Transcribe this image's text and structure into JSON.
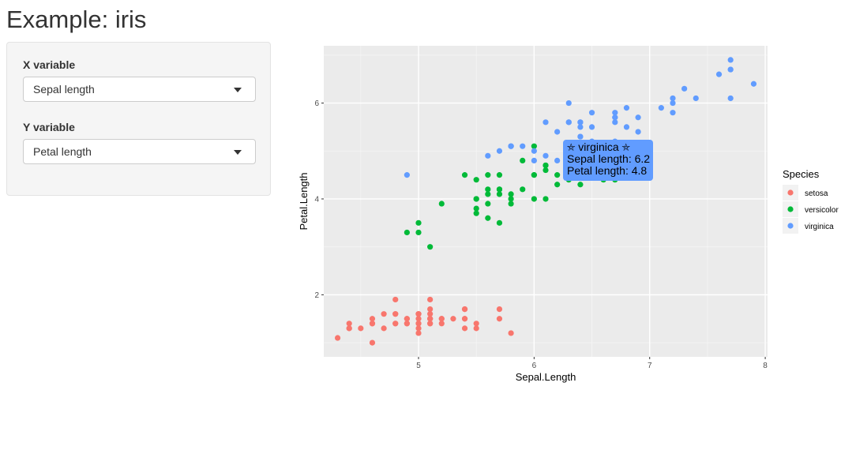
{
  "page": {
    "title": "Example: iris"
  },
  "controls": {
    "x": {
      "label": "X variable",
      "selected": "Sepal length"
    },
    "y": {
      "label": "Y variable",
      "selected": "Petal length"
    }
  },
  "tooltip": {
    "species": "virginica",
    "line1": "Sepal length: 6.2",
    "line2": "Petal length: 4.8"
  },
  "chart_data": {
    "type": "scatter",
    "xlabel": "Sepal.Length",
    "ylabel": "Petal.Length",
    "xlim": [
      4.18,
      8.02
    ],
    "ylim": [
      0.705,
      7.195
    ],
    "xticks": [
      5,
      6,
      7,
      8
    ],
    "yticks": [
      2,
      4,
      6
    ],
    "panel_background": "#ebebeb",
    "grid": true,
    "legend": {
      "title": "Species",
      "placement": "right"
    },
    "series": [
      {
        "name": "setosa",
        "color": "#f8766d",
        "points": [
          [
            5.1,
            1.4
          ],
          [
            4.9,
            1.4
          ],
          [
            4.7,
            1.3
          ],
          [
            4.6,
            1.5
          ],
          [
            5.0,
            1.4
          ],
          [
            5.4,
            1.7
          ],
          [
            4.6,
            1.4
          ],
          [
            5.0,
            1.5
          ],
          [
            4.4,
            1.4
          ],
          [
            4.9,
            1.5
          ],
          [
            5.4,
            1.5
          ],
          [
            4.8,
            1.6
          ],
          [
            4.8,
            1.4
          ],
          [
            4.3,
            1.1
          ],
          [
            5.8,
            1.2
          ],
          [
            5.7,
            1.5
          ],
          [
            5.4,
            1.3
          ],
          [
            5.1,
            1.4
          ],
          [
            5.7,
            1.7
          ],
          [
            5.1,
            1.5
          ],
          [
            5.4,
            1.7
          ],
          [
            5.1,
            1.5
          ],
          [
            4.6,
            1.0
          ],
          [
            5.1,
            1.7
          ],
          [
            4.8,
            1.9
          ],
          [
            5.0,
            1.6
          ],
          [
            5.0,
            1.6
          ],
          [
            5.2,
            1.5
          ],
          [
            5.2,
            1.4
          ],
          [
            4.7,
            1.6
          ],
          [
            4.8,
            1.6
          ],
          [
            5.4,
            1.5
          ],
          [
            5.2,
            1.5
          ],
          [
            5.5,
            1.4
          ],
          [
            4.9,
            1.5
          ],
          [
            5.0,
            1.2
          ],
          [
            5.5,
            1.3
          ],
          [
            4.9,
            1.4
          ],
          [
            4.4,
            1.3
          ],
          [
            5.1,
            1.5
          ],
          [
            5.0,
            1.3
          ],
          [
            4.5,
            1.3
          ],
          [
            4.4,
            1.3
          ],
          [
            5.0,
            1.6
          ],
          [
            5.1,
            1.9
          ],
          [
            4.8,
            1.4
          ],
          [
            5.1,
            1.6
          ],
          [
            4.6,
            1.4
          ],
          [
            5.3,
            1.5
          ],
          [
            5.0,
            1.4
          ]
        ]
      },
      {
        "name": "versicolor",
        "color": "#00ba38",
        "points": [
          [
            7.0,
            4.7
          ],
          [
            6.4,
            4.5
          ],
          [
            6.9,
            4.9
          ],
          [
            5.5,
            4.0
          ],
          [
            6.5,
            4.6
          ],
          [
            5.7,
            4.5
          ],
          [
            6.3,
            4.7
          ],
          [
            4.9,
            3.3
          ],
          [
            6.6,
            4.6
          ],
          [
            5.2,
            3.9
          ],
          [
            5.0,
            3.5
          ],
          [
            5.9,
            4.2
          ],
          [
            6.0,
            4.0
          ],
          [
            6.1,
            4.7
          ],
          [
            5.6,
            3.6
          ],
          [
            6.7,
            4.4
          ],
          [
            5.6,
            4.5
          ],
          [
            5.8,
            4.1
          ],
          [
            6.2,
            4.5
          ],
          [
            5.6,
            3.9
          ],
          [
            5.9,
            4.8
          ],
          [
            6.1,
            4.0
          ],
          [
            6.3,
            4.9
          ],
          [
            6.1,
            4.7
          ],
          [
            6.4,
            4.3
          ],
          [
            6.6,
            4.4
          ],
          [
            6.8,
            4.8
          ],
          [
            6.7,
            5.0
          ],
          [
            6.0,
            4.5
          ],
          [
            5.7,
            3.5
          ],
          [
            5.5,
            3.8
          ],
          [
            5.5,
            3.7
          ],
          [
            5.8,
            3.9
          ],
          [
            6.0,
            5.1
          ],
          [
            5.4,
            4.5
          ],
          [
            6.0,
            4.5
          ],
          [
            6.7,
            4.7
          ],
          [
            6.3,
            4.4
          ],
          [
            5.6,
            4.1
          ],
          [
            5.5,
            4.0
          ],
          [
            5.5,
            4.4
          ],
          [
            6.1,
            4.6
          ],
          [
            5.8,
            4.0
          ],
          [
            5.0,
            3.3
          ],
          [
            5.6,
            4.2
          ],
          [
            5.7,
            4.2
          ],
          [
            5.7,
            4.2
          ],
          [
            6.2,
            4.3
          ],
          [
            5.1,
            3.0
          ],
          [
            5.7,
            4.1
          ]
        ]
      },
      {
        "name": "virginica",
        "color": "#619cff",
        "points": [
          [
            6.3,
            6.0
          ],
          [
            5.8,
            5.1
          ],
          [
            7.1,
            5.9
          ],
          [
            6.3,
            5.6
          ],
          [
            6.5,
            5.8
          ],
          [
            7.6,
            6.6
          ],
          [
            4.9,
            4.5
          ],
          [
            7.3,
            6.3
          ],
          [
            6.7,
            5.8
          ],
          [
            7.2,
            6.1
          ],
          [
            6.5,
            5.1
          ],
          [
            6.4,
            5.3
          ],
          [
            6.8,
            5.5
          ],
          [
            5.7,
            5.0
          ],
          [
            5.8,
            5.1
          ],
          [
            6.4,
            5.3
          ],
          [
            6.5,
            5.5
          ],
          [
            7.7,
            6.7
          ],
          [
            7.7,
            6.9
          ],
          [
            6.0,
            5.0
          ],
          [
            6.9,
            5.7
          ],
          [
            5.6,
            4.9
          ],
          [
            7.7,
            6.7
          ],
          [
            6.3,
            4.9
          ],
          [
            6.7,
            5.7
          ],
          [
            7.2,
            6.0
          ],
          [
            6.2,
            4.8
          ],
          [
            6.1,
            4.9
          ],
          [
            6.4,
            5.6
          ],
          [
            7.2,
            5.8
          ],
          [
            7.4,
            6.1
          ],
          [
            7.9,
            6.4
          ],
          [
            6.4,
            5.6
          ],
          [
            6.3,
            5.1
          ],
          [
            6.1,
            5.6
          ],
          [
            7.7,
            6.1
          ],
          [
            6.3,
            5.6
          ],
          [
            6.4,
            5.5
          ],
          [
            6.0,
            4.8
          ],
          [
            6.9,
            5.4
          ],
          [
            6.7,
            5.6
          ],
          [
            6.9,
            5.1
          ],
          [
            5.8,
            5.1
          ],
          [
            6.8,
            5.9
          ],
          [
            6.7,
            5.7
          ],
          [
            6.7,
            5.2
          ],
          [
            6.3,
            5.0
          ],
          [
            6.5,
            5.2
          ],
          [
            6.2,
            5.4
          ],
          [
            5.9,
            5.1
          ]
        ]
      }
    ]
  }
}
